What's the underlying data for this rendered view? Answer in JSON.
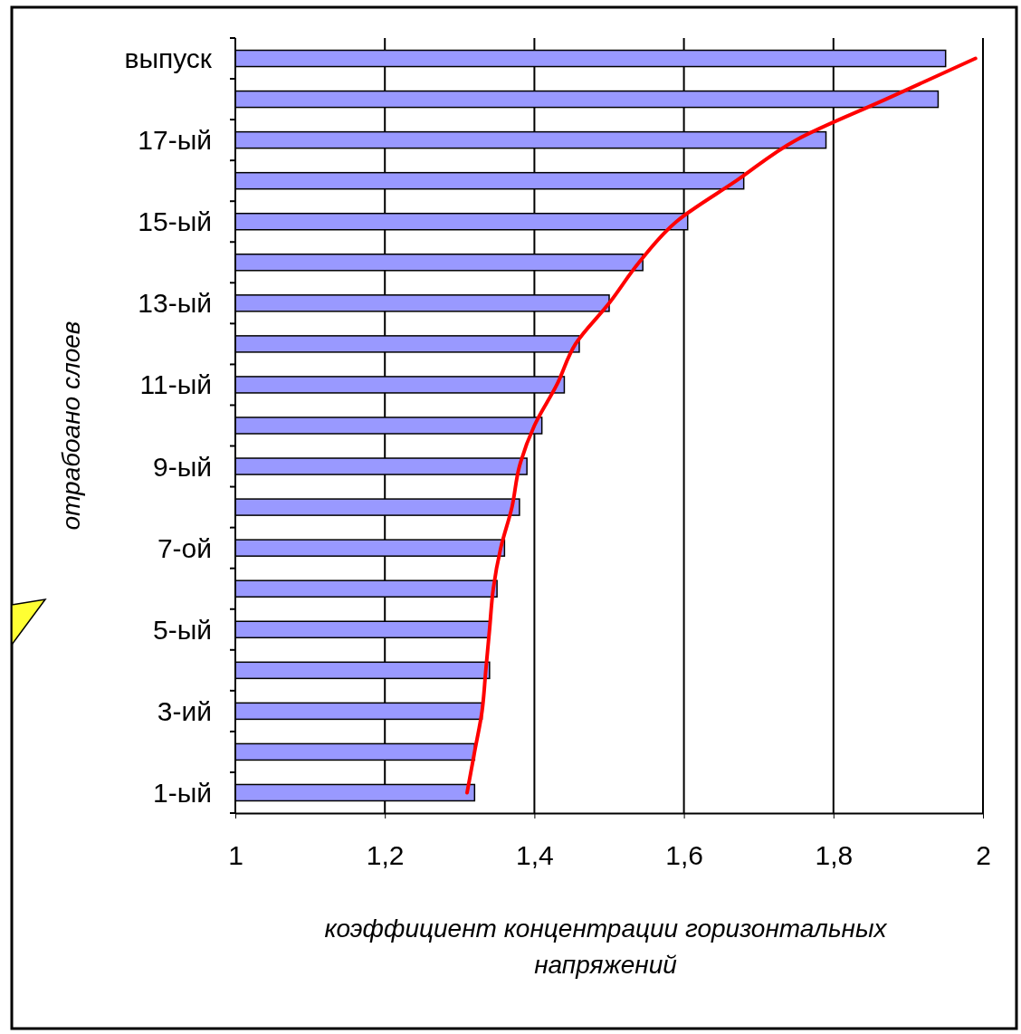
{
  "chart_data": {
    "type": "bar",
    "orientation": "horizontal",
    "xlabel": "коэффициент концентрации горизонтальных напряжений",
    "ylabel": "отрабоано слоев",
    "categories": [
      "выпуск",
      null,
      "17-ый",
      null,
      "15-ый",
      null,
      "13-ый",
      null,
      "11-ый",
      null,
      "9-ый",
      null,
      "7-ой",
      null,
      "5-ый",
      null,
      "3-ий",
      null,
      "1-ый"
    ],
    "series": [
      {
        "color": "#9999ff",
        "values": [
          1.95,
          1.94,
          1.79,
          1.68,
          1.605,
          1.545,
          1.5,
          1.46,
          1.44,
          1.41,
          1.39,
          1.38,
          1.36,
          1.35,
          1.34,
          1.34,
          1.33,
          1.32,
          1.32
        ]
      },
      {
        "type": "line",
        "color": "#ff0000",
        "values": [
          1.99,
          1.87,
          1.75,
          1.67,
          1.59,
          1.54,
          1.5,
          1.455,
          1.43,
          1.4,
          1.38,
          1.37,
          1.355,
          1.345,
          1.34,
          1.335,
          1.33,
          1.32,
          1.31
        ]
      }
    ],
    "xlim": [
      1,
      2
    ],
    "xticks": [
      1,
      {
        "value": 1.2,
        "label": "1,2"
      },
      {
        "value": 1.4,
        "label": "1,4"
      },
      {
        "value": 1.6,
        "label": "1,6"
      },
      {
        "value": 1.8,
        "label": "1,8"
      },
      2
    ],
    "grid": "x"
  }
}
